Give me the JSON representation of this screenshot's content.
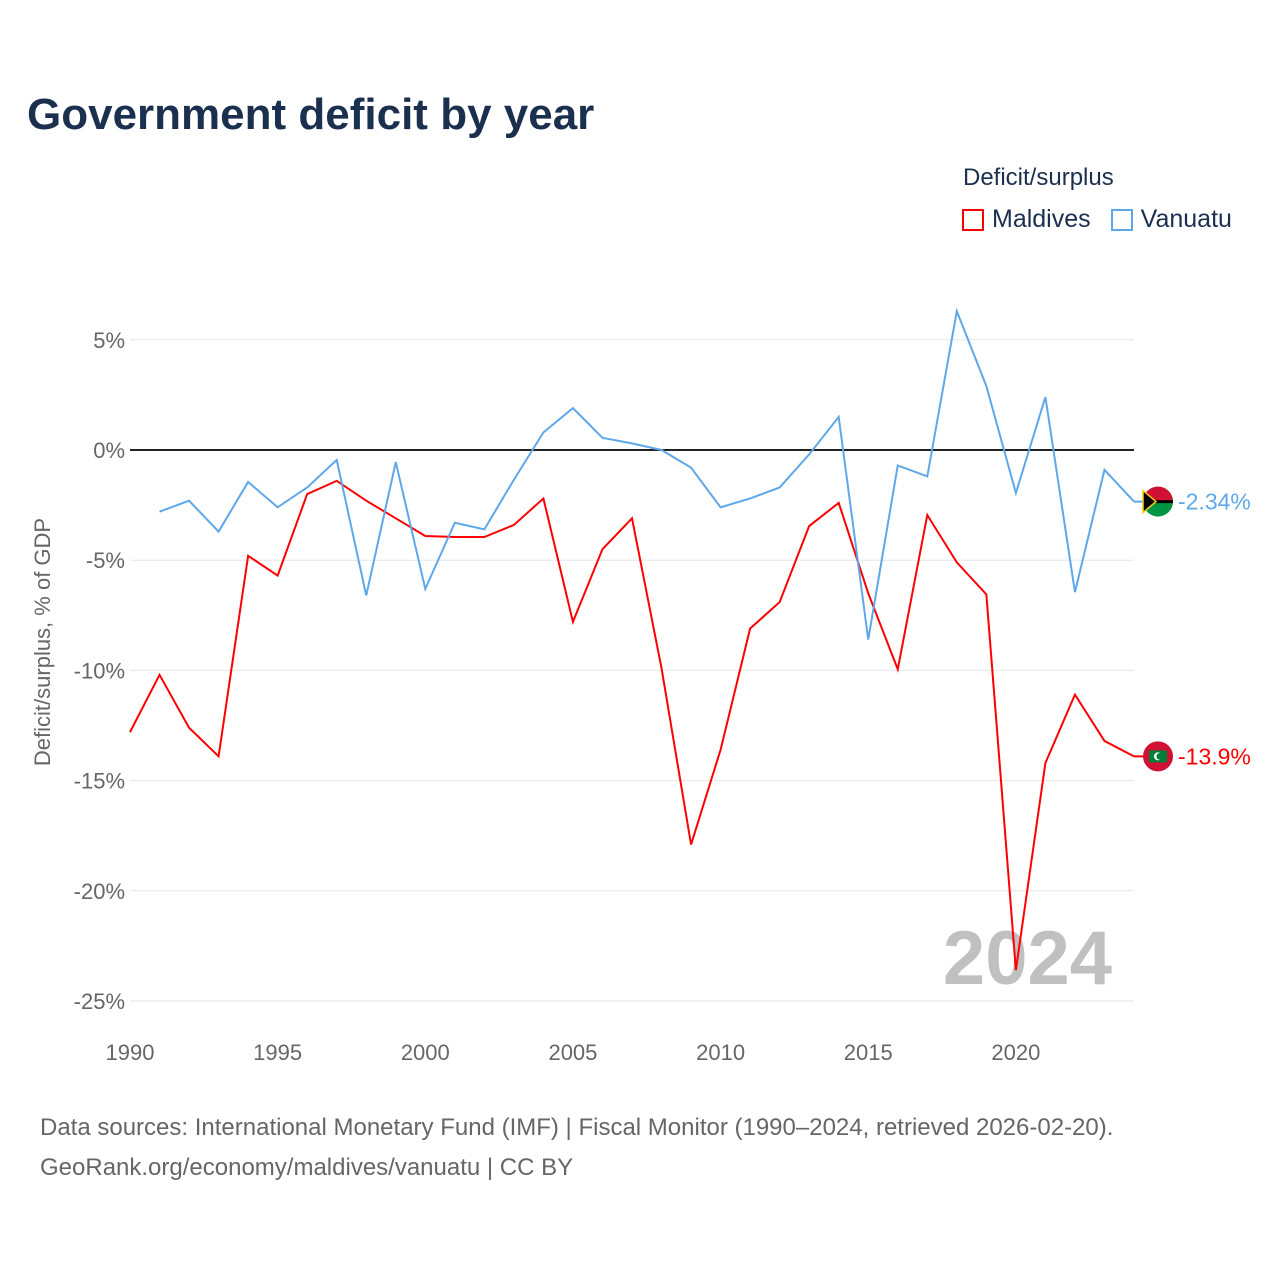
{
  "title": "Government deficit by year",
  "footer": {
    "line1": "Data sources: International Monetary Fund (IMF) | Fiscal Monitor (1990–2024, retrieved 2026-02-20).",
    "line2": "GeoRank.org/economy/maldives/vanuatu | CC BY"
  },
  "chart_data": {
    "type": "line",
    "title": "Government deficit by year",
    "xlabel": "",
    "ylabel": "Deficit/surplus, % of GDP",
    "legend_title": "Deficit/surplus",
    "legend_position": "top-right",
    "year_watermark": "2024",
    "xlim": [
      1990,
      2024
    ],
    "ylim": [
      -25,
      6.5
    ],
    "xticks": [
      1990,
      1995,
      2000,
      2005,
      2010,
      2015,
      2020
    ],
    "yticks": [
      5,
      0,
      -5,
      -10,
      -15,
      -20,
      -25
    ],
    "ytick_labels": [
      "5%",
      "0%",
      "-5%",
      "-10%",
      "-15%",
      "-20%",
      "-25%"
    ],
    "grid": true,
    "series": [
      {
        "name": "Maldives",
        "color": "#ff0000",
        "end_label": "-13.9%",
        "x": [
          1990,
          1991,
          1992,
          1993,
          1994,
          1995,
          1996,
          1997,
          1998,
          1999,
          2000,
          2001,
          2002,
          2003,
          2004,
          2005,
          2006,
          2007,
          2008,
          2009,
          2010,
          2011,
          2012,
          2013,
          2014,
          2015,
          2016,
          2017,
          2018,
          2019,
          2020,
          2021,
          2022,
          2023,
          2024
        ],
        "values": [
          -12.8,
          -10.2,
          -12.6,
          -13.9,
          -4.8,
          -5.7,
          -2.0,
          -1.4,
          -2.3,
          -3.1,
          -3.9,
          -3.95,
          -3.95,
          -3.4,
          -2.2,
          -7.8,
          -4.5,
          -3.1,
          -9.9,
          -17.9,
          -13.6,
          -8.1,
          -6.9,
          -3.45,
          -2.4,
          -6.5,
          -9.95,
          -2.95,
          -5.1,
          -6.55,
          -23.6,
          -14.2,
          -11.1,
          -13.2,
          -13.9
        ]
      },
      {
        "name": "Vanuatu",
        "color": "#5ea8ea",
        "end_label": "-2.34%",
        "x": [
          1991,
          1992,
          1993,
          1994,
          1995,
          1996,
          1997,
          1998,
          1999,
          2000,
          2001,
          2002,
          2003,
          2004,
          2005,
          2006,
          2007,
          2008,
          2009,
          2010,
          2011,
          2012,
          2013,
          2014,
          2015,
          2016,
          2017,
          2018,
          2019,
          2020,
          2021,
          2022,
          2023,
          2024
        ],
        "values": [
          -2.8,
          -2.3,
          -3.7,
          -1.45,
          -2.6,
          -1.7,
          -0.45,
          -6.6,
          -0.55,
          -6.3,
          -3.3,
          -3.6,
          -1.35,
          0.8,
          1.9,
          0.55,
          0.3,
          0.0,
          -0.8,
          -2.6,
          -2.2,
          -1.7,
          -0.2,
          1.5,
          -8.6,
          -0.7,
          -1.2,
          6.3,
          2.9,
          -1.95,
          2.4,
          -6.45,
          -0.9,
          -2.34
        ]
      }
    ]
  }
}
